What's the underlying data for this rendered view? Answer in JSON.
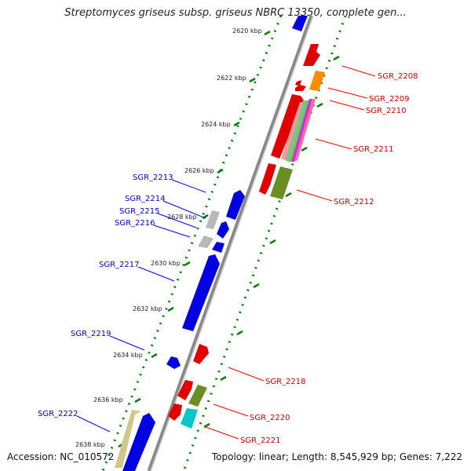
{
  "title": "Streptomyces griseus subsp. griseus NBRC 13350, complete gen...",
  "accession": "Accession: NC_010572",
  "topology": "Topology: linear; Length: 8,545,929 bp; Genes: 7,222",
  "colors": {
    "forward": "#ff0000",
    "reverse": "#0000ff",
    "backbone": "#808080",
    "tick_dots": "#008000"
  },
  "ticks": [
    "2620 kbp",
    "2622 kbp",
    "2624 kbp",
    "2626 kbp",
    "2628 kbp",
    "2630 kbp",
    "2632 kbp",
    "2634 kbp",
    "2636 kbp",
    "2638 kbp"
  ],
  "genes_forward": [
    {
      "label": "SGR_2208"
    },
    {
      "label": "SGR_2209"
    },
    {
      "label": "SGR_2210"
    },
    {
      "label": "SGR_2211"
    },
    {
      "label": "SGR_2212"
    },
    {
      "label": "SGR_2218"
    },
    {
      "label": "SGR_2220"
    },
    {
      "label": "SGR_2221"
    }
  ],
  "genes_reverse": [
    {
      "label": "SGR_2213"
    },
    {
      "label": "SGR_2214"
    },
    {
      "label": "SGR_2215"
    },
    {
      "label": "SGR_2216"
    },
    {
      "label": "SGR_2217"
    },
    {
      "label": "SGR_2219"
    },
    {
      "label": "SGR_2222"
    }
  ]
}
